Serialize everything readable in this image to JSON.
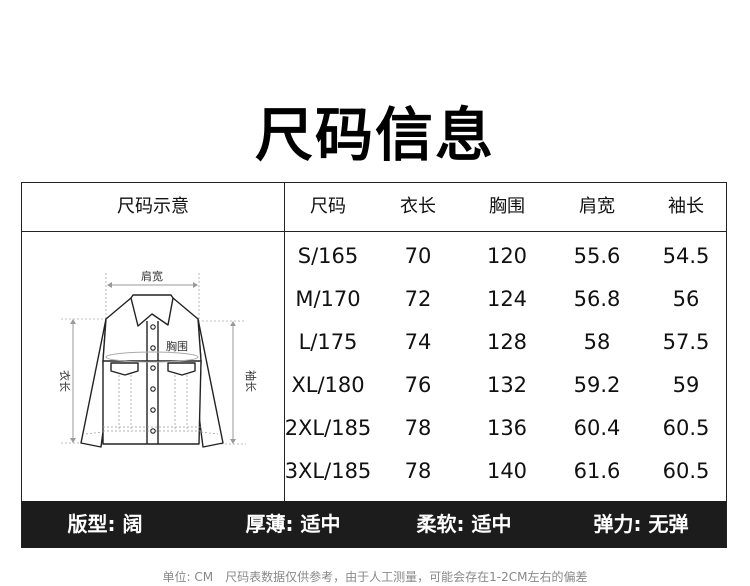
{
  "title": "尺码信息",
  "table": {
    "diagram_header": "尺码示意",
    "columns": [
      "尺码",
      "衣长",
      "胸围",
      "肩宽",
      "袖长"
    ],
    "rows": [
      [
        "S/165",
        "70",
        "120",
        "55.6",
        "54.5"
      ],
      [
        "M/170",
        "72",
        "124",
        "56.8",
        "56"
      ],
      [
        "L/175",
        "74",
        "128",
        "58",
        "57.5"
      ],
      [
        "XL/180",
        "76",
        "132",
        "59.2",
        "59"
      ],
      [
        "2XL/185",
        "78",
        "136",
        "60.4",
        "60.5"
      ],
      [
        "3XL/185",
        "78",
        "140",
        "61.6",
        "60.5"
      ]
    ]
  },
  "diagram": {
    "shoulder": "肩宽",
    "chest": "胸围",
    "length": "衣长",
    "sleeve": "袖长"
  },
  "attributes": [
    {
      "label": "版型: 阔"
    },
    {
      "label": "厚薄: 适中"
    },
    {
      "label": "柔软: 适中"
    },
    {
      "label": "弹力: 无弹"
    }
  ],
  "note": "单位: CM　尺码表数据仅供参考，由于人工测量，可能会存在1-2CM左右的偏差",
  "colors": {
    "footer_bg": "#1c1c1c",
    "border": "#222222",
    "note": "#888888"
  }
}
